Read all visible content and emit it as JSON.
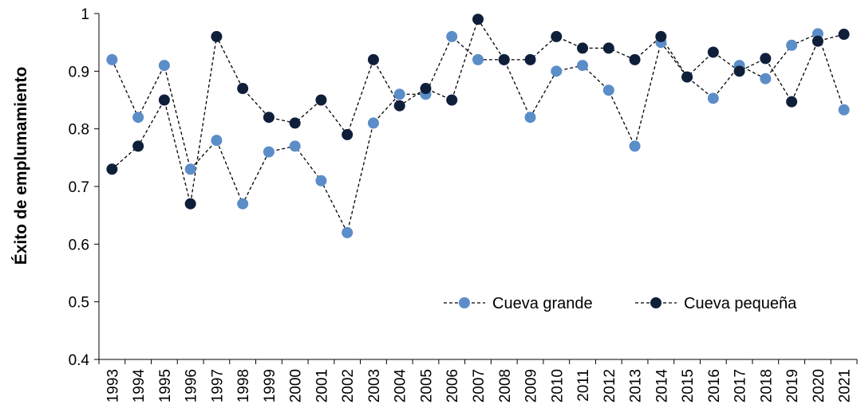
{
  "chart_data": {
    "type": "line",
    "title": "",
    "xlabel": "",
    "ylabel": "Éxito de emplumamiento",
    "ylim": [
      0.4,
      1
    ],
    "yticks": [
      "0.4",
      "0.5",
      "0.6",
      "0.7",
      "0.8",
      "0.9",
      "1"
    ],
    "grid": false,
    "legend_position": "bottom-right",
    "categories": [
      "1993",
      "1994",
      "1995",
      "1996",
      "1997",
      "1998",
      "1999",
      "2000",
      "2001",
      "2002",
      "2003",
      "2004",
      "2005",
      "2006",
      "2007",
      "2008",
      "2009",
      "2010",
      "2011",
      "2012",
      "2013",
      "2014",
      "2015",
      "2016",
      "2017",
      "2018",
      "2019",
      "2020",
      "2021"
    ],
    "series": [
      {
        "name": "Cueva grande",
        "color": "#5B8DC9",
        "line_style": "dashed",
        "marker": "circle",
        "values": [
          0.92,
          0.82,
          0.91,
          0.73,
          0.78,
          0.67,
          0.76,
          0.77,
          0.71,
          0.62,
          0.81,
          0.86,
          0.86,
          0.96,
          0.92,
          0.92,
          0.82,
          0.9,
          0.91,
          0.867,
          0.77,
          0.95,
          0.89,
          0.853,
          0.91,
          0.887,
          0.945,
          0.965,
          0.833
        ]
      },
      {
        "name": "Cueva pequeña",
        "color": "#0F1F3A",
        "line_style": "dashed",
        "marker": "circle",
        "values": [
          0.73,
          0.77,
          0.85,
          0.67,
          0.96,
          0.87,
          0.82,
          0.81,
          0.85,
          0.79,
          0.92,
          0.84,
          0.87,
          0.85,
          0.99,
          0.92,
          0.92,
          0.96,
          0.94,
          0.94,
          0.92,
          0.96,
          0.89,
          0.933,
          0.9,
          0.922,
          0.847,
          0.952,
          0.964
        ]
      }
    ]
  }
}
